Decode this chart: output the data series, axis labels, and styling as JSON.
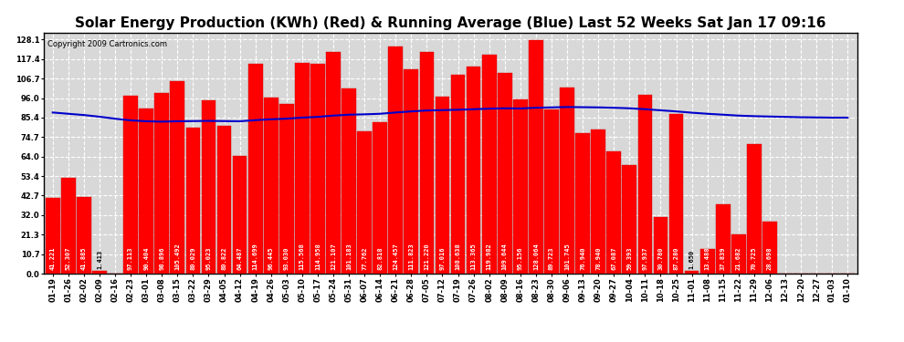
{
  "title": "Solar Energy Production (KWh) (Red) & Running Average (Blue) Last 52 Weeks Sat Jan 17 09:16",
  "copyright": "Copyright 2009 Cartronics.com",
  "bar_color": "#ff0000",
  "avg_line_color": "#0000cc",
  "background_color": "#ffffff",
  "plot_bg_color": "#d8d8d8",
  "grid_color": "#ffffff",
  "categories": [
    "01-19",
    "01-26",
    "02-02",
    "02-09",
    "02-16",
    "02-23",
    "03-01",
    "03-08",
    "03-15",
    "03-22",
    "03-29",
    "04-05",
    "04-12",
    "04-19",
    "04-26",
    "05-03",
    "05-10",
    "05-17",
    "05-24",
    "05-31",
    "06-07",
    "06-14",
    "06-21",
    "06-28",
    "07-05",
    "07-12",
    "07-19",
    "07-26",
    "08-02",
    "08-09",
    "08-16",
    "08-23",
    "08-30",
    "09-06",
    "09-13",
    "09-20",
    "09-27",
    "10-04",
    "10-11",
    "10-18",
    "10-25",
    "11-01",
    "11-08",
    "11-15",
    "11-22",
    "11-29",
    "12-06",
    "12-13",
    "12-20",
    "12-27",
    "01-03",
    "01-10"
  ],
  "values": [
    41.221,
    52.307,
    41.885,
    1.413,
    0.0,
    97.113,
    90.404,
    98.896,
    105.492,
    80.029,
    95.023,
    80.822,
    64.487,
    114.699,
    96.445,
    93.03,
    115.568,
    114.958,
    121.107,
    101.183,
    77.762,
    82.818,
    124.457,
    111.823,
    121.22,
    97.016,
    108.638,
    113.365,
    119.982,
    109.644,
    95.156,
    128.064,
    89.723,
    101.745,
    76.94,
    78.94,
    67.087,
    59.393,
    97.937,
    30.78,
    87.28,
    1.65,
    13.488,
    37.839,
    21.682,
    70.725,
    28.698,
    0.0,
    0.0,
    0.0,
    0.0,
    0.0
  ],
  "running_avg": [
    88.2,
    87.5,
    86.8,
    85.9,
    84.8,
    83.9,
    83.4,
    83.2,
    83.4,
    83.5,
    83.6,
    83.5,
    83.4,
    84.0,
    84.5,
    84.8,
    85.4,
    85.8,
    86.5,
    87.0,
    87.2,
    87.5,
    88.2,
    88.8,
    89.3,
    89.5,
    89.7,
    90.0,
    90.3,
    90.5,
    90.4,
    90.8,
    91.0,
    91.2,
    91.1,
    91.0,
    90.8,
    90.5,
    90.0,
    89.4,
    88.8,
    88.1,
    87.5,
    87.0,
    86.5,
    86.2,
    86.0,
    85.8,
    85.6,
    85.5,
    85.4,
    85.4
  ],
  "yticks": [
    0.0,
    10.7,
    21.3,
    32.0,
    42.7,
    53.4,
    64.0,
    74.7,
    85.4,
    96.0,
    106.7,
    117.4,
    128.1
  ],
  "ylim": [
    0,
    132
  ],
  "title_fontsize": 11,
  "copyright_fontsize": 6,
  "tick_fontsize": 6,
  "value_fontsize": 5
}
